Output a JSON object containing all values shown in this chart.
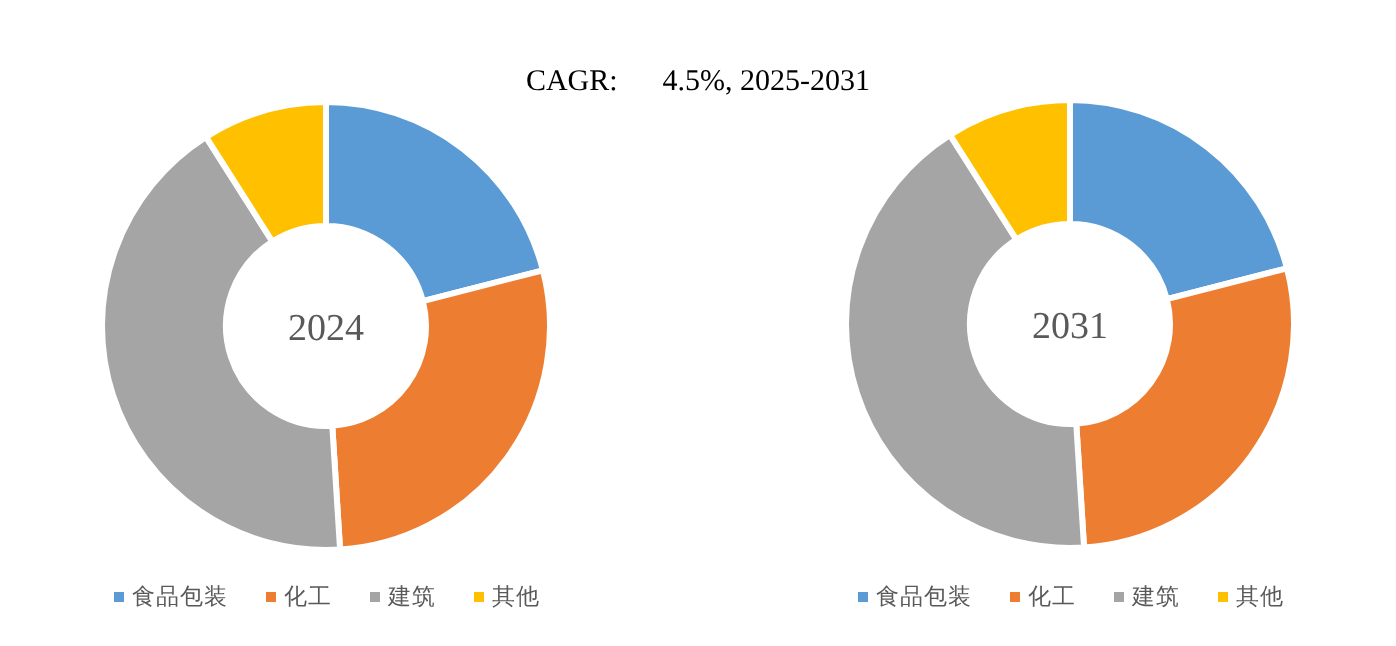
{
  "chart_data": [
    {
      "type": "donut",
      "title": "CAGR:      4.5%, 2025-2031",
      "annotations": [
        "2024"
      ],
      "categories": [
        "食品包装",
        "化工",
        "建筑",
        "其他"
      ],
      "values": [
        21,
        28,
        42,
        9
      ],
      "colors": [
        "#5b9bd5",
        "#ed7d31",
        "#a5a5a5",
        "#ffc000"
      ],
      "legend": "bottom"
    },
    {
      "type": "donut",
      "annotations": [
        "2031"
      ],
      "categories": [
        "食品包装",
        "化工",
        "建筑",
        "其他"
      ],
      "values": [
        21,
        28,
        42,
        9
      ],
      "colors": [
        "#5b9bd5",
        "#ed7d31",
        "#a5a5a5",
        "#ffc000"
      ],
      "legend": "bottom"
    }
  ]
}
